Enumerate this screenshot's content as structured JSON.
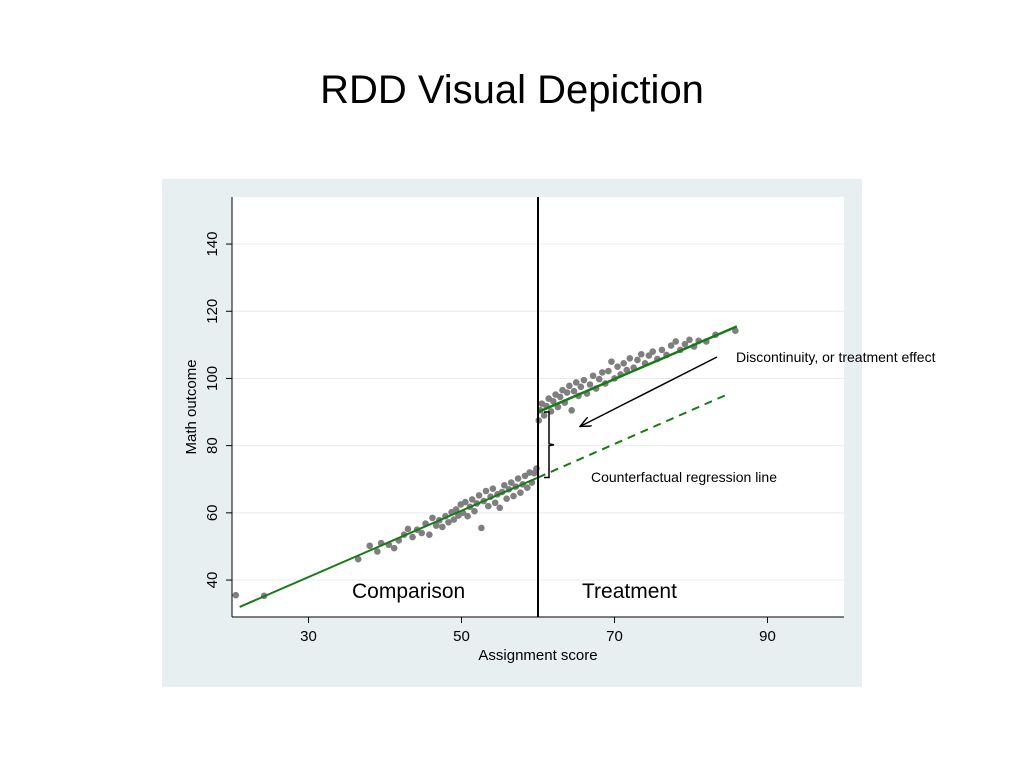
{
  "slide": {
    "title": "RDD Visual Depiction"
  },
  "chart_data": {
    "type": "scatter",
    "title": "",
    "xlabel": "Assignment score",
    "ylabel": "Math outcome",
    "xlim": [
      20,
      100
    ],
    "ylim": [
      29,
      154
    ],
    "x_ticks": [
      30,
      50,
      70,
      90
    ],
    "y_ticks": [
      40,
      60,
      80,
      100,
      120,
      140
    ],
    "grid": "horizontal",
    "cutoff": 60,
    "regression": {
      "comparison": {
        "x": [
          21,
          60
        ],
        "y": [
          32,
          70.5
        ]
      },
      "treatment": {
        "x": [
          60,
          86
        ],
        "y": [
          90,
          115.5
        ]
      },
      "counterfactual": {
        "x": [
          60,
          85
        ],
        "y": [
          70.5,
          95.5
        ]
      }
    },
    "annotations": {
      "discontinuity": "Discontinuity, or treatment effect",
      "counterfactual": "Counterfactual regression line",
      "comparison_region": "Comparison",
      "treatment_region": "Treatment"
    },
    "colors": {
      "points": "#7f7f7f",
      "regression": "#1a7a1a",
      "cutoff": "#000000",
      "panel_bg": "#e8eff1"
    },
    "seed_note_points": {
      "comparison": [
        [
          20.5,
          35.5
        ],
        [
          24.2,
          35.3
        ],
        [
          36.5,
          46.2
        ],
        [
          38.0,
          50.2
        ],
        [
          39.0,
          48.5
        ],
        [
          39.5,
          51.0
        ],
        [
          40.5,
          50.5
        ],
        [
          41.2,
          49.5
        ],
        [
          41.8,
          51.8
        ],
        [
          42.5,
          53.5
        ],
        [
          43.0,
          55.2
        ],
        [
          43.6,
          52.8
        ],
        [
          44.2,
          55.0
        ],
        [
          44.8,
          54.0
        ],
        [
          45.3,
          56.8
        ],
        [
          45.8,
          53.5
        ],
        [
          46.2,
          58.5
        ],
        [
          46.7,
          56.2
        ],
        [
          47.1,
          57.8
        ],
        [
          47.5,
          55.8
        ],
        [
          47.9,
          59.0
        ],
        [
          48.3,
          57.2
        ],
        [
          48.7,
          60.2
        ],
        [
          49.0,
          58.0
        ],
        [
          49.3,
          61.0
        ],
        [
          49.6,
          59.2
        ],
        [
          49.9,
          62.5
        ],
        [
          50.2,
          60.0
        ],
        [
          50.5,
          63.2
        ],
        [
          50.8,
          59.0
        ],
        [
          51.1,
          61.8
        ],
        [
          51.4,
          64.0
        ],
        [
          51.7,
          60.5
        ],
        [
          52.0,
          62.8
        ],
        [
          52.3,
          65.2
        ],
        [
          52.6,
          55.5
        ],
        [
          52.9,
          63.5
        ],
        [
          53.2,
          66.5
        ],
        [
          53.5,
          62.0
        ],
        [
          53.8,
          64.8
        ],
        [
          54.1,
          67.2
        ],
        [
          54.4,
          63.0
        ],
        [
          54.7,
          65.5
        ],
        [
          55.0,
          61.5
        ],
        [
          55.3,
          66.2
        ],
        [
          55.6,
          68.2
        ],
        [
          55.9,
          64.2
        ],
        [
          56.2,
          67.0
        ],
        [
          56.5,
          69.0
        ],
        [
          56.8,
          65.0
        ],
        [
          57.1,
          67.8
        ],
        [
          57.4,
          70.2
        ],
        [
          57.7,
          66.0
        ],
        [
          58.0,
          68.5
        ],
        [
          58.3,
          71.0
        ],
        [
          58.6,
          67.5
        ],
        [
          58.9,
          72.0
        ],
        [
          59.2,
          69.0
        ],
        [
          59.5,
          71.8
        ],
        [
          59.8,
          73.2
        ]
      ],
      "treatment": [
        [
          60.1,
          87.5
        ],
        [
          60.3,
          90.5
        ],
        [
          60.5,
          92.5
        ],
        [
          60.8,
          89.0
        ],
        [
          61.1,
          91.8
        ],
        [
          61.4,
          94.0
        ],
        [
          61.7,
          90.2
        ],
        [
          62.0,
          93.2
        ],
        [
          62.3,
          95.2
        ],
        [
          62.6,
          91.5
        ],
        [
          62.9,
          94.5
        ],
        [
          63.2,
          96.5
        ],
        [
          63.5,
          92.8
        ],
        [
          63.8,
          95.8
        ],
        [
          64.1,
          97.8
        ],
        [
          64.4,
          90.5
        ],
        [
          64.7,
          96.2
        ],
        [
          65.0,
          98.8
        ],
        [
          65.3,
          94.8
        ],
        [
          65.6,
          97.5
        ],
        [
          66.0,
          99.5
        ],
        [
          66.4,
          95.5
        ],
        [
          66.8,
          98.2
        ],
        [
          67.2,
          100.8
        ],
        [
          67.6,
          97.0
        ],
        [
          68.0,
          99.8
        ],
        [
          68.4,
          101.8
        ],
        [
          68.8,
          98.5
        ],
        [
          69.2,
          102.2
        ],
        [
          69.6,
          105.0
        ],
        [
          70.0,
          100.0
        ],
        [
          70.4,
          103.5
        ],
        [
          70.8,
          101.2
        ],
        [
          71.2,
          104.5
        ],
        [
          71.6,
          102.5
        ],
        [
          72.0,
          106.0
        ],
        [
          72.5,
          103.2
        ],
        [
          73.0,
          105.5
        ],
        [
          73.5,
          107.2
        ],
        [
          74.0,
          104.5
        ],
        [
          74.5,
          106.8
        ],
        [
          75.0,
          108.0
        ],
        [
          75.6,
          105.8
        ],
        [
          76.2,
          108.5
        ],
        [
          76.8,
          107.0
        ],
        [
          77.4,
          109.8
        ],
        [
          78.0,
          111.0
        ],
        [
          78.6,
          108.5
        ],
        [
          79.2,
          110.2
        ],
        [
          79.8,
          111.5
        ],
        [
          80.4,
          109.5
        ],
        [
          81.0,
          111.2
        ],
        [
          82.0,
          111.0
        ],
        [
          83.2,
          113.0
        ],
        [
          85.8,
          114.2
        ]
      ]
    }
  }
}
